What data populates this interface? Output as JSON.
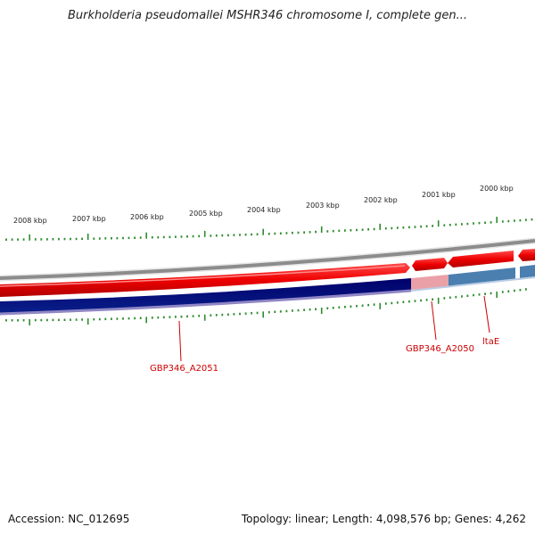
{
  "title": "Burkholderia pseudomallei MSHR346 chromosome I, complete gen...",
  "footer": {
    "accession": "Accession: NC_012695",
    "summary": "Topology: linear; Length: 4,098,576 bp; Genes: 4,262"
  },
  "colors": {
    "tick": "#2e8b2e",
    "backbone": "#888888",
    "forward_strand": "#ee0000",
    "reverse_strand": "#000080",
    "reverse_highlight": "#4a7fb0",
    "reverse_pink": "#e99aa0",
    "label": "#cc0000"
  },
  "kbp_ticks": [
    "2008 kbp",
    "2007 kbp",
    "2006 kbp",
    "2005 kbp",
    "2004 kbp",
    "2003 kbp",
    "2002 kbp",
    "2001 kbp",
    "2000 kbp"
  ],
  "gene_labels": [
    "GBP346_A2051",
    "GBP346_A2050",
    "ltaE"
  ]
}
